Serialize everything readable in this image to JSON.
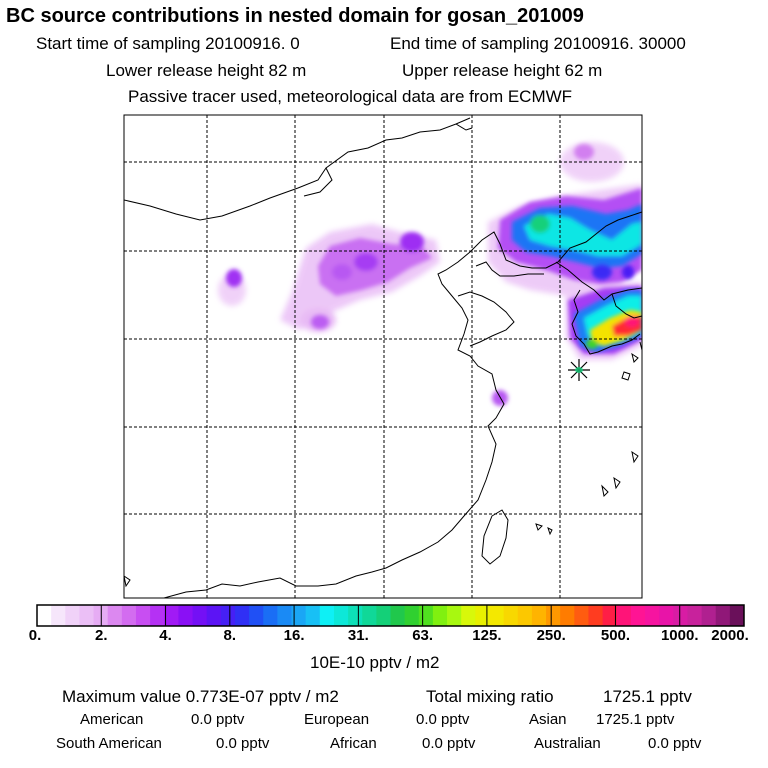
{
  "header": {
    "title": "BC  source contributions in nested domain for gosan_201009",
    "start_sampling": "Start time of sampling 20100916.     0",
    "end_sampling": "End time of sampling 20100916. 30000",
    "lower_release": "Lower release height   82 m",
    "upper_release": "Upper release height   62 m",
    "tracer_note": "Passive tracer used, meteorological data are from ECMWF"
  },
  "chart_data": {
    "type": "heatmap",
    "title": "BC  source contributions in nested domain for gosan_201009",
    "colorbar": {
      "unit_label": "10E-10 pptv / m2",
      "tick_labels": [
        "0.",
        "2.",
        "4.",
        "8.",
        "16.",
        "31.",
        "63.",
        "125.",
        "250.",
        "500.",
        "1000.",
        "2000."
      ],
      "tick_values": [
        0,
        2,
        4,
        8,
        16,
        31,
        63,
        125,
        250,
        500,
        1000,
        2000
      ],
      "segments_per_interval": 5,
      "colors": [
        "#ffffff",
        "#f6e6fb",
        "#f0d2f8",
        "#ebbff6",
        "#e6acf4",
        "#dc88f0",
        "#d36cf0",
        "#c84ef2",
        "#b531f4",
        "#a11af5",
        "#8a10f5",
        "#7410f5",
        "#5c14f5",
        "#4620f5",
        "#3030f5",
        "#2050f5",
        "#1a6ef5",
        "#1a8af5",
        "#1aa6f5",
        "#18c0f5",
        "#0ef0f5",
        "#0de8d8",
        "#0de0b8",
        "#10d898",
        "#14d078",
        "#20c84c",
        "#30d030",
        "#50e020",
        "#80f010",
        "#a8f810",
        "#d8f80a",
        "#e8f000",
        "#f4e800",
        "#f8d800",
        "#fcc800",
        "#ffb400",
        "#ff9800",
        "#ff7c00",
        "#ff5c10",
        "#ff3c20",
        "#ff1e46",
        "#ff1478",
        "#ff1494",
        "#f614a0",
        "#e814a8",
        "#d81ca4",
        "#c8229c",
        "#b02090",
        "#901878",
        "#6a105a"
      ]
    },
    "gridlines": "dashed",
    "release_site_marker": "asterisk"
  },
  "stats": {
    "max_value": "Maximum value  0.773E-07 pptv / m2",
    "total_mixing": "Total mixing ratio",
    "total_mixing_value": "1725.1 pptv",
    "american_label": "American",
    "american_value": "0.0 pptv",
    "european_label": "European",
    "european_value": "0.0 pptv",
    "asian_label": "Asian",
    "asian_value": "1725.1 pptv",
    "south_american_label": "South American",
    "south_american_value": "0.0 pptv",
    "african_label": "African",
    "african_value": "0.0 pptv",
    "australian_label": "Australian",
    "australian_value": "0.0 pptv"
  }
}
